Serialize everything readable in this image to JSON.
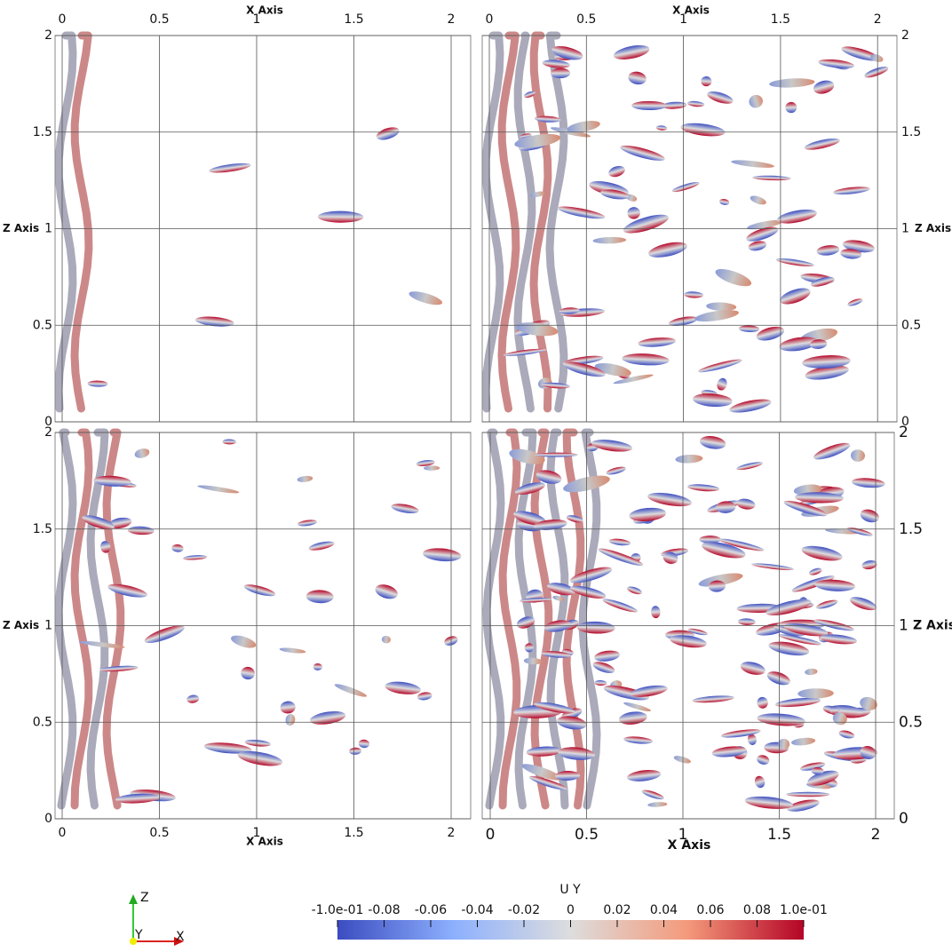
{
  "panels": [
    {
      "x_axis_title": "X Axis",
      "z_axis_title": "Z Axis",
      "x_ticks": [
        "0",
        "0.5",
        "1",
        "1.5",
        "2"
      ],
      "z_ticks": [
        "0",
        "0.5",
        "1",
        "1.5",
        "2"
      ]
    },
    {
      "x_axis_title": "X Axis",
      "z_axis_title": "Z Axis",
      "x_ticks": [
        "0",
        "0.5",
        "1",
        "1.5",
        "2"
      ],
      "z_ticks": [
        "0",
        "0.5",
        "1",
        "1.5",
        "2"
      ]
    },
    {
      "x_axis_title": "X Axis",
      "z_axis_title": "Z Axis",
      "x_ticks": [
        "0",
        "0.5",
        "1",
        "1.5",
        "2"
      ],
      "z_ticks": [
        "0",
        "0.5",
        "1",
        "1.5",
        "2"
      ]
    },
    {
      "x_axis_title": "X Axis",
      "z_axis_title": "Z Axis",
      "x_ticks": [
        "0",
        "0.5",
        "1",
        "1.5",
        "2"
      ],
      "z_ticks": [
        "0",
        "0.5",
        "1",
        "1.5",
        "2"
      ]
    }
  ],
  "colorbar": {
    "title": "U Y",
    "labels": [
      "-1.0e-01",
      "-0.08",
      "-0.06",
      "-0.04",
      "-0.02",
      "0",
      "0.02",
      "0.04",
      "0.06",
      "0.08",
      "1.0e-01"
    ]
  },
  "orientation_axes": {
    "z": "Z",
    "y": "Y",
    "x": "X"
  }
}
